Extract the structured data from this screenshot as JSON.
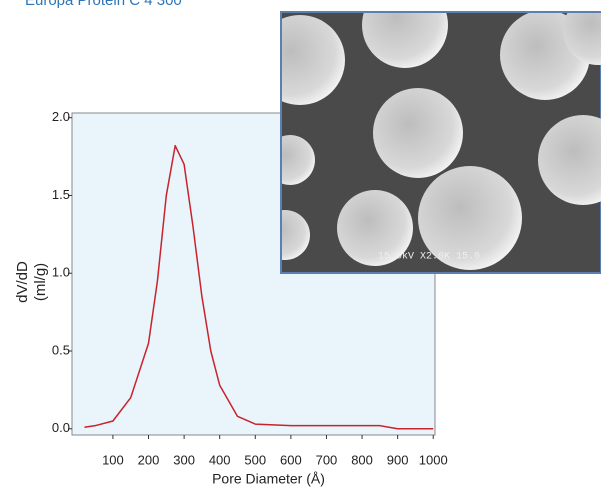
{
  "chart_data": {
    "type": "line",
    "title": "Europa Protein C 4 300",
    "x_label": "Pore Diameter (Å)",
    "y_label": [
      "dV/dD",
      "(ml/g)"
    ],
    "x": [
      20,
      50,
      100,
      150,
      200,
      225,
      250,
      275,
      300,
      325,
      350,
      375,
      400,
      450,
      500,
      600,
      700,
      800,
      850,
      900,
      1000
    ],
    "series": [
      {
        "name": "dV/dD",
        "color": "#c8232c",
        "values": [
          0.01,
          0.02,
          0.05,
          0.2,
          0.55,
          0.95,
          1.5,
          1.82,
          1.7,
          1.3,
          0.85,
          0.5,
          0.28,
          0.08,
          0.03,
          0.02,
          0.02,
          0.02,
          0.02,
          0.0,
          0.0
        ]
      }
    ],
    "xlim": [
      -15,
      1005
    ],
    "ylim": [
      -0.04,
      2.03
    ],
    "xticks": [
      100,
      200,
      300,
      400,
      500,
      600,
      700,
      800,
      900,
      1000
    ],
    "yticks": [
      {
        "value": 0,
        "label": "0.0"
      },
      {
        "value": 0.5,
        "label": "0.5"
      },
      {
        "value": 1,
        "label": "1.0"
      },
      {
        "value": 1.5,
        "label": "1.5"
      },
      {
        "value": 2,
        "label": "2.0"
      }
    ],
    "plot_background": "#e9f4fb",
    "image_caption": "15.0kV X2.0K 15.0"
  }
}
